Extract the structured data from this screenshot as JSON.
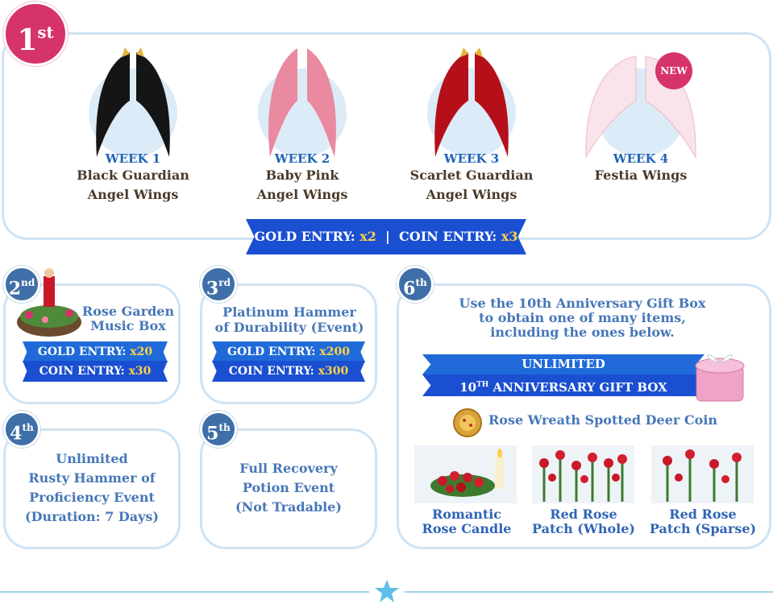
{
  "first": {
    "rank_num": "1",
    "rank_suffix": "st",
    "items": [
      {
        "week": "WEEK 1",
        "name1": "Black Guardian",
        "name2": "Angel Wings"
      },
      {
        "week": "WEEK 2",
        "name1": "Baby Pink",
        "name2": "Angel Wings"
      },
      {
        "week": "WEEK 3",
        "name1": "Scarlet Guardian",
        "name2": "Angel Wings"
      },
      {
        "week": "WEEK 4",
        "name1": "Festia Wings",
        "name2": ""
      }
    ],
    "new_badge": "NEW",
    "gold_label": "GOLD ENTRY: ",
    "gold_value": "x2",
    "separator": "|",
    "coin_label": "COIN ENTRY: ",
    "coin_value": "x3"
  },
  "second": {
    "rank_num": "2",
    "rank_suffix": "nd",
    "title1": "Rose Garden",
    "title2": "Music Box",
    "gold_label": "GOLD ENTRY: ",
    "gold_value": "x20",
    "coin_label": "COIN ENTRY: ",
    "coin_value": "x30"
  },
  "third": {
    "rank_num": "3",
    "rank_suffix": "rd",
    "title1": "Platinum Hammer",
    "title2": "of Durability (Event)",
    "gold_label": "GOLD ENTRY: ",
    "gold_value": "x200",
    "coin_label": "COIN ENTRY: ",
    "coin_value": "x300"
  },
  "fourth": {
    "rank_num": "4",
    "rank_suffix": "th",
    "lines": [
      "Unlimited",
      "Rusty Hammer of",
      "Proficiency Event",
      "(Duration: 7 Days)"
    ]
  },
  "fifth": {
    "rank_num": "5",
    "rank_suffix": "th",
    "lines": [
      "Full Recovery",
      "Potion Event",
      "(Not Tradable)"
    ]
  },
  "sixth": {
    "rank_num": "6",
    "rank_suffix": "th",
    "desc": [
      "Use the 10th Anniversary Gift Box",
      "to obtain one of many items,",
      "including the ones below."
    ],
    "ribbon_top": "UNLIMITED",
    "ribbon_bottom_pre": "10",
    "ribbon_bottom_sup": "TH",
    "ribbon_bottom_post": " ANNIVERSARY GIFT BOX",
    "coin_item": "Rose Wreath Spotted Deer Coin",
    "thumbs": [
      {
        "line1": "Romantic",
        "line2": "Rose Candle"
      },
      {
        "line1": "Red Rose",
        "line2": "Patch (Whole)"
      },
      {
        "line1": "Red Rose",
        "line2": "Patch (Sparse)"
      }
    ]
  },
  "colors": {
    "pink_badge": "#d6336c",
    "blue_badge": "#3f6fa8",
    "ribbon_blue": "#1a4fd1",
    "accent_yellow": "#ffd24a",
    "border": "#cfe3f3"
  }
}
